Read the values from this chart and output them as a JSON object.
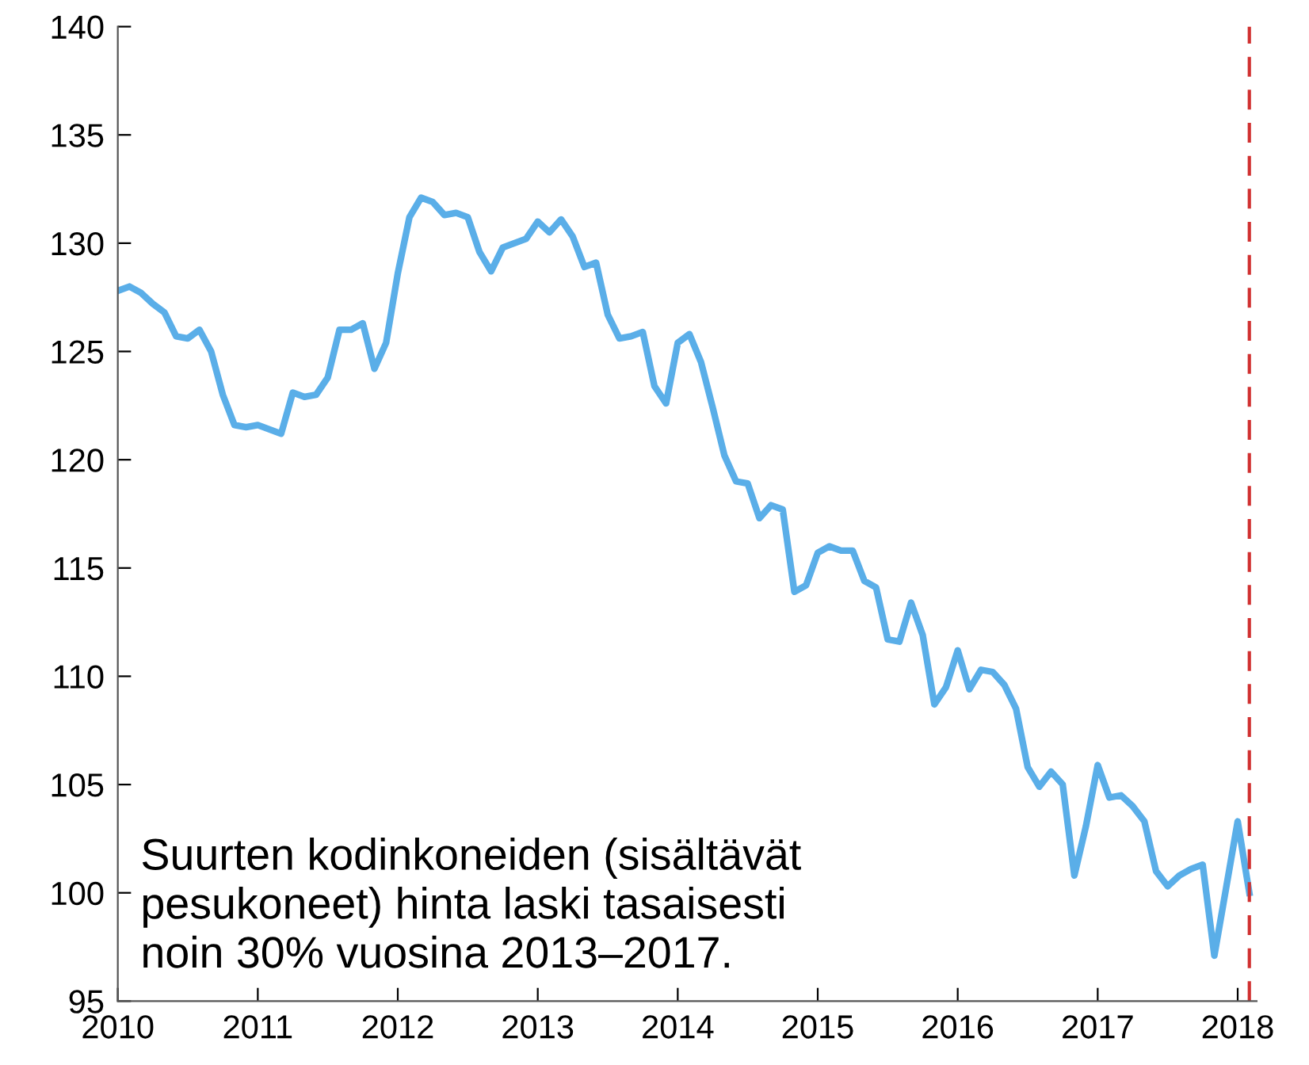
{
  "chart_data": {
    "type": "line",
    "x": [
      "2010-01",
      "2010-02",
      "2010-03",
      "2010-04",
      "2010-05",
      "2010-06",
      "2010-07",
      "2010-08",
      "2010-09",
      "2010-10",
      "2010-11",
      "2010-12",
      "2011-01",
      "2011-02",
      "2011-03",
      "2011-04",
      "2011-05",
      "2011-06",
      "2011-07",
      "2011-08",
      "2011-09",
      "2011-10",
      "2011-11",
      "2011-12",
      "2012-01",
      "2012-02",
      "2012-03",
      "2012-04",
      "2012-05",
      "2012-06",
      "2012-07",
      "2012-08",
      "2012-09",
      "2012-10",
      "2012-11",
      "2012-12",
      "2013-01",
      "2013-02",
      "2013-03",
      "2013-04",
      "2013-05",
      "2013-06",
      "2013-07",
      "2013-08",
      "2013-09",
      "2013-10",
      "2013-11",
      "2013-12",
      "2014-01",
      "2014-02",
      "2014-03",
      "2014-04",
      "2014-05",
      "2014-06",
      "2014-07",
      "2014-08",
      "2014-09",
      "2014-10",
      "2014-11",
      "2014-12",
      "2015-01",
      "2015-02",
      "2015-03",
      "2015-04",
      "2015-05",
      "2015-06",
      "2015-07",
      "2015-08",
      "2015-09",
      "2015-10",
      "2015-11",
      "2015-12",
      "2016-01",
      "2016-02",
      "2016-03",
      "2016-04",
      "2016-05",
      "2016-06",
      "2016-07",
      "2016-08",
      "2016-09",
      "2016-10",
      "2016-11",
      "2016-12",
      "2017-01",
      "2017-02",
      "2017-03",
      "2017-04",
      "2017-05",
      "2017-06",
      "2017-07",
      "2017-08",
      "2017-09",
      "2017-10",
      "2017-11",
      "2017-12",
      "2018-01",
      "2018-02"
    ],
    "series": [
      {
        "color": "#5aaee8",
        "values": [
          127.8,
          128.0,
          127.7,
          127.2,
          126.8,
          125.7,
          125.6,
          126.0,
          125.0,
          123.0,
          121.6,
          121.5,
          121.6,
          121.4,
          121.2,
          123.1,
          122.9,
          123.0,
          123.8,
          126.0,
          126.0,
          126.3,
          124.2,
          125.4,
          128.6,
          131.2,
          132.1,
          131.9,
          131.3,
          131.4,
          131.2,
          129.6,
          128.7,
          129.8,
          130.0,
          130.2,
          131.0,
          130.5,
          131.1,
          130.3,
          128.9,
          129.1,
          126.7,
          125.6,
          125.7,
          125.9,
          123.4,
          122.6,
          125.4,
          125.8,
          124.5,
          122.4,
          120.2,
          119.0,
          118.9,
          117.3,
          117.9,
          117.7,
          113.9,
          114.2,
          115.7,
          116.0,
          115.8,
          115.8,
          114.4,
          114.1,
          111.7,
          111.6,
          113.4,
          111.9,
          108.7,
          109.5,
          111.2,
          109.4,
          110.3,
          110.2,
          109.6,
          108.5,
          105.8,
          104.9,
          105.6,
          105.0,
          100.8,
          103.1,
          105.9,
          104.4,
          104.5,
          104.0,
          103.3,
          101.0,
          100.3,
          100.8,
          101.1,
          101.3,
          97.1,
          100.2,
          103.3,
          100.0
        ]
      }
    ],
    "xlim": [
      "2010-01",
      "2018-02-20"
    ],
    "xticks": [
      "2010",
      "2011",
      "2012",
      "2013",
      "2014",
      "2015",
      "2016",
      "2017",
      "2018"
    ],
    "ylim": [
      95,
      140
    ],
    "yticks": [
      95,
      100,
      105,
      110,
      115,
      120,
      125,
      130,
      135,
      140
    ],
    "ref_lines": [
      {
        "axis": "x",
        "value": "2018-02",
        "color": "#d03030",
        "line_style": "dashed"
      }
    ],
    "annotations": [
      "Suurten kodinkoneiden (sisältävät\npesukoneet) hinta laski tasaisesti\nnoin 30% vuosina 2013–2017."
    ],
    "grid": false,
    "marker": "none",
    "line_style": "solid"
  }
}
